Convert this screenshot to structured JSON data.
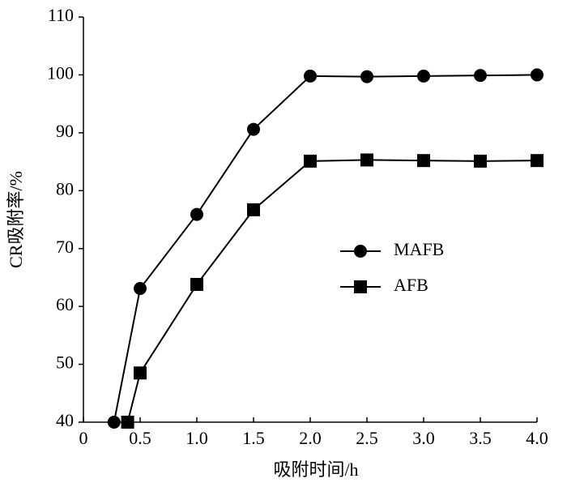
{
  "chart_data": {
    "type": "line",
    "xlabel": "吸附时间/h",
    "ylabel": "CR吸附率/%",
    "xlim": [
      0,
      4.0
    ],
    "ylim": [
      40,
      110
    ],
    "xticks": [
      0,
      0.5,
      {
        "value": 1.0,
        "label": "1.0"
      },
      1.5,
      {
        "value": 2.0,
        "label": "2.0"
      },
      2.5,
      {
        "value": 3.0,
        "label": "3.0"
      },
      3.5,
      {
        "value": 4.0,
        "label": "4.0"
      }
    ],
    "yticks": [
      40,
      50,
      60,
      70,
      80,
      90,
      100,
      110
    ],
    "legend": "right",
    "series": [
      {
        "name": "MAFB",
        "color": "#000000",
        "marker": "circle",
        "x": [
          0.27,
          0.5,
          1.0,
          1.5,
          2.0,
          2.5,
          3.0,
          3.5,
          4.0
        ],
        "values": [
          40,
          63.1,
          75.9,
          90.6,
          99.8,
          99.7,
          99.8,
          99.9,
          100
        ]
      },
      {
        "name": "AFB",
        "color": "#000000",
        "marker": "square",
        "x": [
          0.39,
          0.5,
          1.0,
          1.5,
          2.0,
          2.5,
          3.0,
          3.5,
          4.0
        ],
        "values": [
          40,
          48.5,
          63.8,
          76.7,
          85.1,
          85.3,
          85.2,
          85.1,
          85.2
        ]
      }
    ]
  }
}
